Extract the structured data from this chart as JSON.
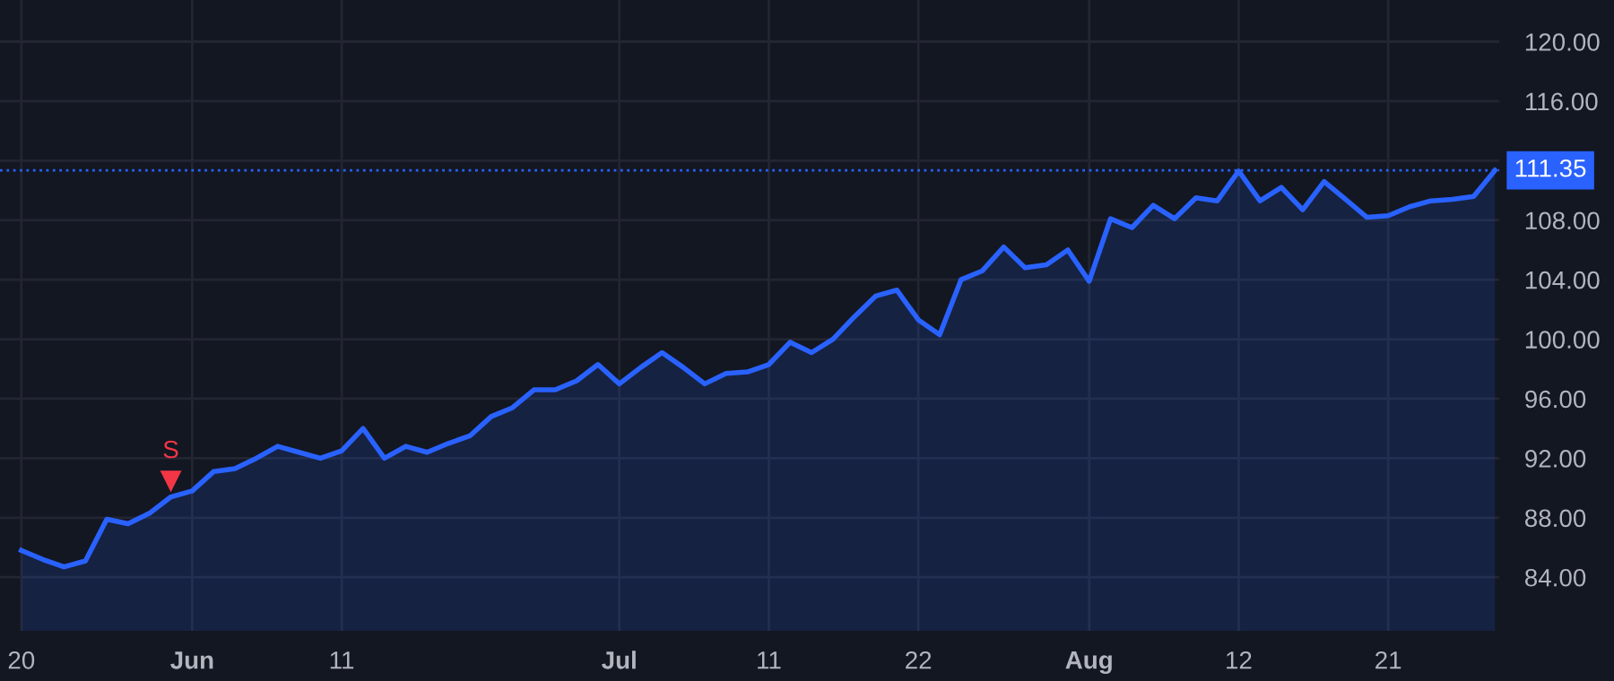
{
  "chart_data": {
    "type": "area",
    "categories": [
      "20",
      null,
      null,
      null,
      null,
      null,
      null,
      null,
      "Jun",
      null,
      null,
      null,
      null,
      null,
      null,
      "11",
      null,
      null,
      null,
      null,
      null,
      null,
      null,
      null,
      null,
      null,
      null,
      null,
      "Jul",
      null,
      null,
      null,
      null,
      null,
      null,
      "11",
      null,
      null,
      null,
      null,
      null,
      null,
      "22",
      null,
      null,
      null,
      null,
      null,
      null,
      null,
      "Aug",
      null,
      null,
      null,
      null,
      null,
      null,
      "12",
      null,
      null,
      null,
      null,
      null,
      null,
      "21",
      null,
      null,
      null,
      null,
      null
    ],
    "series": [
      {
        "color": "#2962ff",
        "values": [
          85.8,
          85.2,
          84.7,
          85.1,
          87.9,
          87.6,
          88.3,
          89.4,
          89.8,
          91.1,
          91.3,
          92.0,
          92.8,
          92.4,
          92.0,
          92.5,
          94.0,
          92.0,
          92.8,
          92.4,
          93.0,
          93.5,
          94.8,
          95.4,
          96.6,
          96.6,
          97.2,
          98.3,
          97.0,
          98.1,
          99.1,
          98.1,
          97.0,
          97.7,
          97.8,
          98.3,
          99.8,
          99.1,
          100.0,
          101.5,
          102.9,
          103.3,
          101.3,
          100.3,
          104.0,
          104.6,
          106.2,
          104.8,
          105.0,
          106.0,
          103.9,
          108.1,
          107.5,
          109.0,
          108.1,
          109.5,
          109.3,
          111.3,
          109.3,
          110.2,
          108.7,
          110.6,
          109.4,
          108.2,
          108.3,
          108.9,
          109.3,
          109.4,
          109.6,
          111.35
        ]
      },
      {
        "type": "scatter",
        "name": "S",
        "color": "#f23645",
        "marker": "triangle",
        "values": [
          null,
          null,
          null,
          null,
          null,
          null,
          null,
          90.5,
          null,
          null,
          null,
          null,
          null,
          null,
          null,
          null,
          null,
          null,
          null,
          null,
          null,
          null,
          null,
          null,
          null,
          null,
          null,
          null,
          null,
          null,
          null,
          null,
          null,
          null,
          null,
          null,
          null,
          null,
          null,
          null,
          null,
          null,
          null,
          null,
          null,
          null,
          null,
          null,
          null,
          null,
          null,
          null,
          null,
          null,
          null,
          null,
          null,
          null,
          null,
          null,
          null,
          null,
          null,
          null,
          null,
          null,
          null,
          null,
          null,
          null
        ]
      }
    ],
    "ylim": [
      80.4,
      122.8
    ],
    "yticks": [
      {
        "value": 84,
        "label": "84.00"
      },
      {
        "value": 88,
        "label": "88.00"
      },
      {
        "value": 92,
        "label": "92.00"
      },
      {
        "value": 96,
        "label": "96.00"
      },
      {
        "value": 100,
        "label": "100.00"
      },
      {
        "value": 104,
        "label": "104.00"
      },
      {
        "value": 108,
        "label": "108.00"
      },
      {
        "value": 112,
        "label": null
      },
      {
        "value": 116,
        "label": "116.00"
      },
      {
        "value": 120,
        "label": "120.00"
      }
    ],
    "ref_lines": [
      {
        "axis": "y",
        "value": 111.35,
        "label": "111.35",
        "color": "#2962ff",
        "line_style": "dotted"
      }
    ],
    "grid": true,
    "legend": false
  }
}
